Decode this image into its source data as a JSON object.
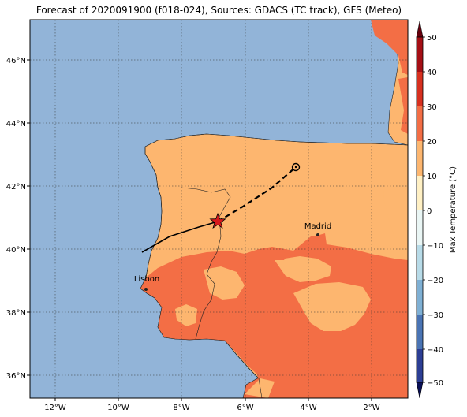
{
  "title": "Forecast of 2020091900 (f018-024), Sources: GDACS (TC track), GFS (Meteo)",
  "map": {
    "lon_ticks": [
      "12°W",
      "10°W",
      "8°W",
      "6°W",
      "4°W",
      "2°W"
    ],
    "lat_ticks": [
      "46°N",
      "44°N",
      "42°N",
      "40°N",
      "38°N",
      "36°N"
    ],
    "cities": [
      {
        "name": "Madrid",
        "lon": -3.7,
        "lat": 40.42
      },
      {
        "name": "Lisbon",
        "lon": -9.14,
        "lat": 38.72
      }
    ],
    "track_observed_label": "TC track",
    "colors": {
      "sea": "#92b4d8",
      "temp_10_20": "#fdb66f",
      "temp_20_30": "#f36e45",
      "temp_30_40": "#d7301f"
    }
  },
  "colorbar": {
    "label": "Max Temperature (°C)",
    "ticks": [
      "50",
      "40",
      "30",
      "20",
      "10",
      "0",
      "−10",
      "−20",
      "−30",
      "−40",
      "−50"
    ]
  }
}
